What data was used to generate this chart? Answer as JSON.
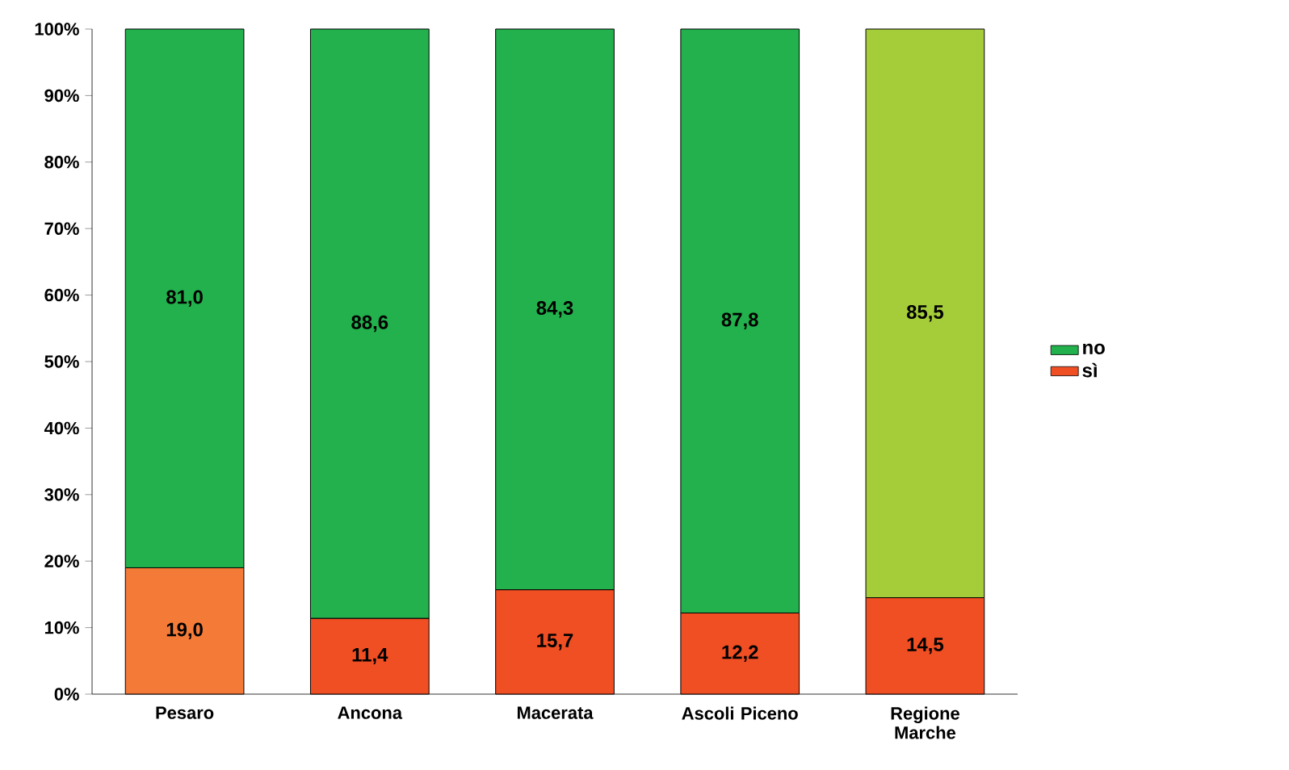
{
  "chart_data": {
    "type": "bar",
    "stacked": true,
    "legend": "right",
    "grid": false,
    "categories": [
      "Pesaro",
      "Ancona",
      "Macerata",
      "Ascoli Piceno",
      "Regione Marche"
    ],
    "series": [
      {
        "name": "sì",
        "color": "#f04e23",
        "colors": [
          "#f47a38",
          "#f04e23",
          "#f04e23",
          "#f04e23",
          "#f04e23"
        ],
        "values": [
          19.0,
          11.4,
          15.7,
          12.2,
          14.5
        ],
        "value_labels": [
          "19,0",
          "11,4",
          "15,7",
          "12,2",
          "14,5"
        ]
      },
      {
        "name": "no",
        "color": "#22b14c",
        "colors": [
          "#22b14c",
          "#22b14c",
          "#22b14c",
          "#22b14c",
          "#a5cd3a"
        ],
        "values": [
          81.0,
          88.6,
          84.3,
          87.8,
          85.5
        ],
        "value_labels": [
          "81,0",
          "88,6",
          "84,3",
          "87,8",
          "85,5"
        ]
      }
    ],
    "ylim": [
      0,
      100
    ],
    "yticks": [
      {
        "value": 0,
        "label": "0%"
      },
      {
        "value": 10,
        "label": "10%"
      },
      {
        "value": 20,
        "label": "20%"
      },
      {
        "value": 30,
        "label": "30%"
      },
      {
        "value": 40,
        "label": "40%"
      },
      {
        "value": 50,
        "label": "50%"
      },
      {
        "value": 60,
        "label": "60%"
      },
      {
        "value": 70,
        "label": "70%"
      },
      {
        "value": 80,
        "label": "80%"
      },
      {
        "value": 90,
        "label": "90%"
      },
      {
        "value": 100,
        "label": "100%"
      }
    ]
  }
}
